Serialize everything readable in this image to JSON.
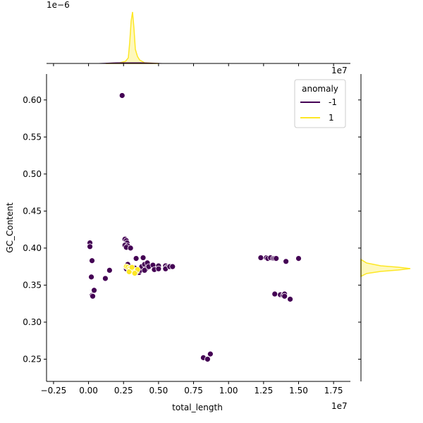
{
  "chart_data": {
    "type": "scatter",
    "xlabel": "total_length",
    "ylabel": "GC_Content",
    "x_offset_label": "1e7",
    "xlim": [
      -0.3,
      1.87
    ],
    "ylim": [
      0.22,
      0.635
    ],
    "xticks": [
      -0.25,
      0.0,
      0.25,
      0.5,
      0.75,
      1.0,
      1.25,
      1.5,
      1.75
    ],
    "xtick_labels": [
      "−0.25",
      "0.00",
      "0.25",
      "0.50",
      "0.75",
      "1.00",
      "1.25",
      "1.50",
      "1.75"
    ],
    "yticks": [
      0.25,
      0.3,
      0.35,
      0.4,
      0.45,
      0.5,
      0.55,
      0.6
    ],
    "ytick_labels": [
      "0.25",
      "0.30",
      "0.35",
      "0.40",
      "0.45",
      "0.50",
      "0.55",
      "0.60"
    ],
    "legend": {
      "title": "anomaly",
      "placement": "top-right",
      "entries": [
        {
          "label": "-1",
          "color": "#440154"
        },
        {
          "label": "1",
          "color": "#fde725"
        }
      ]
    },
    "series": [
      {
        "color": "#440154",
        "points": [
          [
            0.24,
            0.606
          ],
          [
            0.01,
            0.407
          ],
          [
            0.01,
            0.402
          ],
          [
            0.025,
            0.383
          ],
          [
            0.02,
            0.361
          ],
          [
            0.025,
            0.336
          ],
          [
            0.04,
            0.343
          ],
          [
            0.03,
            0.335
          ],
          [
            0.12,
            0.359
          ],
          [
            0.15,
            0.37
          ],
          [
            0.26,
            0.412
          ],
          [
            0.27,
            0.41
          ],
          [
            0.275,
            0.407
          ],
          [
            0.26,
            0.404
          ],
          [
            0.28,
            0.403
          ],
          [
            0.27,
            0.401
          ],
          [
            0.3,
            0.4
          ],
          [
            0.27,
            0.376
          ],
          [
            0.28,
            0.378
          ],
          [
            0.27,
            0.372
          ],
          [
            0.34,
            0.386
          ],
          [
            0.33,
            0.373
          ],
          [
            0.35,
            0.368
          ],
          [
            0.36,
            0.367
          ],
          [
            0.37,
            0.37
          ],
          [
            0.38,
            0.375
          ],
          [
            0.39,
            0.387
          ],
          [
            0.4,
            0.378
          ],
          [
            0.41,
            0.372
          ],
          [
            0.4,
            0.37
          ],
          [
            0.42,
            0.38
          ],
          [
            0.43,
            0.375
          ],
          [
            0.46,
            0.377
          ],
          [
            0.47,
            0.371
          ],
          [
            0.5,
            0.376
          ],
          [
            0.5,
            0.372
          ],
          [
            0.55,
            0.376
          ],
          [
            0.56,
            0.374
          ],
          [
            0.55,
            0.372
          ],
          [
            0.58,
            0.375
          ],
          [
            0.6,
            0.375
          ],
          [
            0.82,
            0.252
          ],
          [
            0.85,
            0.25
          ],
          [
            0.87,
            0.257
          ],
          [
            1.23,
            0.387
          ],
          [
            1.27,
            0.387
          ],
          [
            1.28,
            0.386
          ],
          [
            1.3,
            0.387
          ],
          [
            1.32,
            0.386
          ],
          [
            1.33,
            0.386
          ],
          [
            1.34,
            0.386
          ],
          [
            1.41,
            0.382
          ],
          [
            1.5,
            0.386
          ],
          [
            1.33,
            0.338
          ],
          [
            1.37,
            0.337
          ],
          [
            1.39,
            0.336
          ],
          [
            1.4,
            0.338
          ],
          [
            1.4,
            0.335
          ],
          [
            1.44,
            0.331
          ]
        ]
      },
      {
        "color": "#fde725",
        "points": [
          [
            0.27,
            0.375
          ],
          [
            0.28,
            0.374
          ],
          [
            0.29,
            0.372
          ],
          [
            0.3,
            0.373
          ],
          [
            0.3,
            0.37
          ],
          [
            0.31,
            0.371
          ],
          [
            0.32,
            0.369
          ],
          [
            0.33,
            0.37
          ],
          [
            0.34,
            0.368
          ],
          [
            0.35,
            0.371
          ],
          [
            0.29,
            0.368
          ],
          [
            0.31,
            0.374
          ],
          [
            0.33,
            0.366
          ]
        ]
      }
    ]
  }
}
